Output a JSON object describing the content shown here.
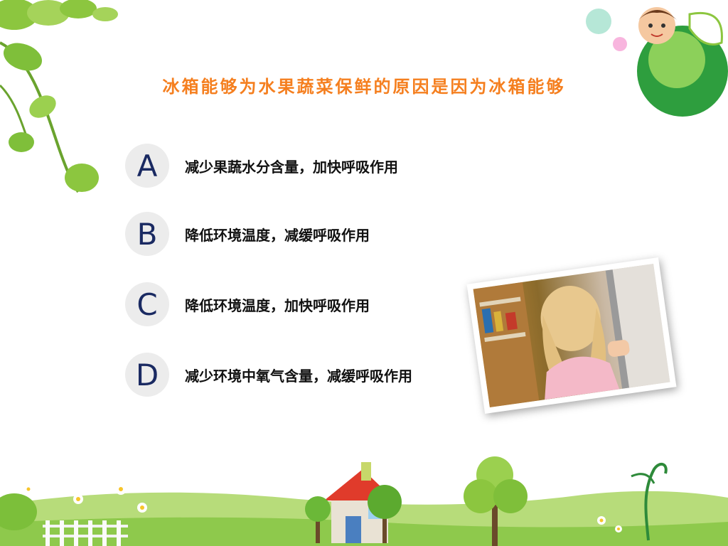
{
  "title": "冰箱能够为水果蔬菜保鲜的原因是因为冰箱能够",
  "options": [
    {
      "letter": "A",
      "text": "减少果蔬水分含量，加快呼吸作用"
    },
    {
      "letter": "B",
      "text": "降低环境温度，减缓呼吸作用"
    },
    {
      "letter": "C",
      "text": "降低环境温度，加快呼吸作用"
    },
    {
      "letter": "D",
      "text": "减少环境中氧气含量，减缓呼吸作用"
    }
  ],
  "colors": {
    "title": "#f57f1f",
    "badge_bg": "#ececec",
    "badge_text": "#1a2a62",
    "green": "#7fc241"
  },
  "icons": [
    "leaf-vine-icon",
    "child-leaf-icon",
    "house-icon",
    "tree-icon",
    "flower-icon",
    "fence-icon"
  ]
}
